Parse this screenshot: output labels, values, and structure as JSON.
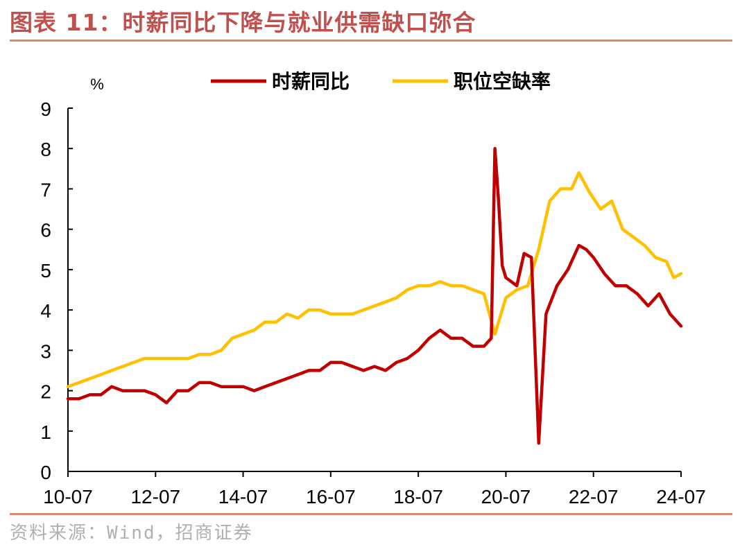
{
  "header": {
    "title": "图表 11：时薪同比下降与就业供需缺口弥合"
  },
  "footer": {
    "source": "资料来源：Wind，招商证券"
  },
  "colors": {
    "series_1": "#c00000",
    "series_2": "#ffc000",
    "title": "#c0504d",
    "rule": "#d88a6e"
  },
  "chart_data": {
    "type": "line",
    "unit_label": "%",
    "ylim": [
      0,
      9
    ],
    "y_ticks": [
      "0",
      "1",
      "2",
      "3",
      "4",
      "5",
      "6",
      "7",
      "8",
      "9"
    ],
    "x_range": [
      "2010-07",
      "2024-07"
    ],
    "x_ticks": [
      "10-07",
      "12-07",
      "14-07",
      "16-07",
      "18-07",
      "20-07",
      "22-07",
      "24-07"
    ],
    "legend_position": "top",
    "grid": false,
    "series": [
      {
        "name": "时薪同比",
        "color": "#c00000",
        "points": [
          [
            "2010-07",
            1.8
          ],
          [
            "2010-10",
            1.8
          ],
          [
            "2011-01",
            1.9
          ],
          [
            "2011-04",
            1.9
          ],
          [
            "2011-07",
            2.1
          ],
          [
            "2011-10",
            2.0
          ],
          [
            "2012-01",
            2.0
          ],
          [
            "2012-04",
            2.0
          ],
          [
            "2012-07",
            1.9
          ],
          [
            "2012-10",
            1.7
          ],
          [
            "2013-01",
            2.0
          ],
          [
            "2013-04",
            2.0
          ],
          [
            "2013-07",
            2.2
          ],
          [
            "2013-10",
            2.2
          ],
          [
            "2014-01",
            2.1
          ],
          [
            "2014-04",
            2.1
          ],
          [
            "2014-07",
            2.1
          ],
          [
            "2014-10",
            2.0
          ],
          [
            "2015-01",
            2.1
          ],
          [
            "2015-04",
            2.2
          ],
          [
            "2015-07",
            2.3
          ],
          [
            "2015-10",
            2.4
          ],
          [
            "2016-01",
            2.5
          ],
          [
            "2016-04",
            2.5
          ],
          [
            "2016-07",
            2.7
          ],
          [
            "2016-10",
            2.7
          ],
          [
            "2017-01",
            2.6
          ],
          [
            "2017-04",
            2.5
          ],
          [
            "2017-07",
            2.6
          ],
          [
            "2017-10",
            2.5
          ],
          [
            "2018-01",
            2.7
          ],
          [
            "2018-04",
            2.8
          ],
          [
            "2018-07",
            3.0
          ],
          [
            "2018-10",
            3.3
          ],
          [
            "2019-01",
            3.5
          ],
          [
            "2019-04",
            3.3
          ],
          [
            "2019-07",
            3.3
          ],
          [
            "2019-10",
            3.1
          ],
          [
            "2020-01",
            3.1
          ],
          [
            "2020-03",
            3.3
          ],
          [
            "2020-04",
            8.0
          ],
          [
            "2020-05",
            6.7
          ],
          [
            "2020-06",
            5.1
          ],
          [
            "2020-07",
            4.8
          ],
          [
            "2020-10",
            4.6
          ],
          [
            "2020-12",
            5.4
          ],
          [
            "2021-02",
            5.3
          ],
          [
            "2021-04",
            0.7
          ],
          [
            "2021-06",
            3.9
          ],
          [
            "2021-09",
            4.6
          ],
          [
            "2021-12",
            5.0
          ],
          [
            "2022-03",
            5.6
          ],
          [
            "2022-05",
            5.5
          ],
          [
            "2022-07",
            5.3
          ],
          [
            "2022-10",
            4.9
          ],
          [
            "2023-01",
            4.6
          ],
          [
            "2023-04",
            4.6
          ],
          [
            "2023-07",
            4.4
          ],
          [
            "2023-10",
            4.1
          ],
          [
            "2024-01",
            4.4
          ],
          [
            "2024-04",
            3.9
          ],
          [
            "2024-07",
            3.6
          ]
        ]
      },
      {
        "name": "职位空缺率",
        "color": "#ffc000",
        "points": [
          [
            "2010-07",
            2.1
          ],
          [
            "2010-10",
            2.2
          ],
          [
            "2011-01",
            2.3
          ],
          [
            "2011-04",
            2.4
          ],
          [
            "2011-07",
            2.5
          ],
          [
            "2011-10",
            2.6
          ],
          [
            "2012-01",
            2.7
          ],
          [
            "2012-04",
            2.8
          ],
          [
            "2012-07",
            2.8
          ],
          [
            "2012-10",
            2.8
          ],
          [
            "2013-01",
            2.8
          ],
          [
            "2013-04",
            2.8
          ],
          [
            "2013-07",
            2.9
          ],
          [
            "2013-10",
            2.9
          ],
          [
            "2014-01",
            3.0
          ],
          [
            "2014-04",
            3.3
          ],
          [
            "2014-07",
            3.4
          ],
          [
            "2014-10",
            3.5
          ],
          [
            "2015-01",
            3.7
          ],
          [
            "2015-04",
            3.7
          ],
          [
            "2015-07",
            3.9
          ],
          [
            "2015-10",
            3.8
          ],
          [
            "2016-01",
            4.0
          ],
          [
            "2016-04",
            4.0
          ],
          [
            "2016-07",
            3.9
          ],
          [
            "2016-10",
            3.9
          ],
          [
            "2017-01",
            3.9
          ],
          [
            "2017-04",
            4.0
          ],
          [
            "2017-07",
            4.1
          ],
          [
            "2017-10",
            4.2
          ],
          [
            "2018-01",
            4.3
          ],
          [
            "2018-04",
            4.5
          ],
          [
            "2018-07",
            4.6
          ],
          [
            "2018-10",
            4.6
          ],
          [
            "2019-01",
            4.7
          ],
          [
            "2019-04",
            4.6
          ],
          [
            "2019-07",
            4.6
          ],
          [
            "2019-10",
            4.5
          ],
          [
            "2020-01",
            4.4
          ],
          [
            "2020-04",
            3.4
          ],
          [
            "2020-07",
            4.3
          ],
          [
            "2020-10",
            4.5
          ],
          [
            "2021-01",
            4.6
          ],
          [
            "2021-04",
            5.5
          ],
          [
            "2021-07",
            6.7
          ],
          [
            "2021-10",
            7.0
          ],
          [
            "2022-01",
            7.0
          ],
          [
            "2022-03",
            7.4
          ],
          [
            "2022-06",
            6.9
          ],
          [
            "2022-09",
            6.5
          ],
          [
            "2022-12",
            6.7
          ],
          [
            "2023-03",
            6.0
          ],
          [
            "2023-06",
            5.8
          ],
          [
            "2023-09",
            5.6
          ],
          [
            "2023-12",
            5.3
          ],
          [
            "2024-03",
            5.2
          ],
          [
            "2024-05",
            4.8
          ],
          [
            "2024-07",
            4.9
          ]
        ]
      }
    ]
  }
}
